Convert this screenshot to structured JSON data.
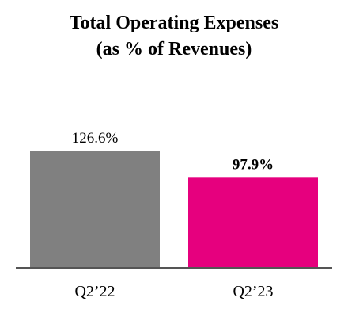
{
  "title_line1": "Total Operating Expenses",
  "title_line2": "(as % of Revenues)",
  "chart_data": {
    "type": "bar",
    "title": "Total Operating Expenses (as % of Revenues)",
    "categories": [
      "Q2’22",
      "Q2’23"
    ],
    "values": [
      126.6,
      97.9
    ],
    "value_labels": [
      "126.6%",
      "97.9%"
    ],
    "value_label_bold": [
      false,
      true
    ],
    "colors": [
      "#808080",
      "#E6007E"
    ],
    "xlabel": "",
    "ylabel": "",
    "ylim": [
      0,
      126.6
    ],
    "grid": false,
    "legend": "none"
  }
}
